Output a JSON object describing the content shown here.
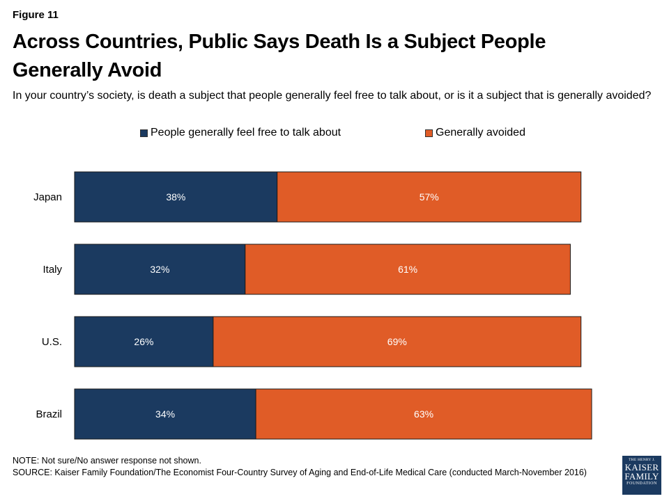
{
  "figure_label": "Figure 11",
  "title": "Across Countries, Public Says Death Is a Subject People Generally Avoid",
  "subtitle": "In your country’s society, is death a subject that people generally feel free to talk about, or is it a subject that is generally avoided?",
  "colors": {
    "free": "#1b3a60",
    "avoided": "#e05c27",
    "label_text": "#ffffff"
  },
  "chart_data": {
    "type": "bar",
    "orientation": "horizontal",
    "stacked": true,
    "categories": [
      "Japan",
      "Italy",
      "U.S.",
      "Brazil"
    ],
    "series": [
      {
        "name": "People generally feel free to talk about",
        "values": [
          38,
          32,
          26,
          34
        ]
      },
      {
        "name": "Generally avoided",
        "values": [
          57,
          61,
          69,
          63
        ]
      }
    ],
    "value_suffix": "%",
    "xlim": [
      0,
      100
    ],
    "legend_position": "top",
    "grid": false
  },
  "note": "NOTE: Not sure/No answer response not shown.",
  "source": "SOURCE: Kaiser Family Foundation/The Economist Four-Country Survey of Aging and End-of-Life Medical Care (conducted March-November 2016)",
  "logo": {
    "line1": "THE HENRY J.",
    "line2": "KAISER",
    "line3": "FAMILY",
    "line4": "FOUNDATION"
  }
}
